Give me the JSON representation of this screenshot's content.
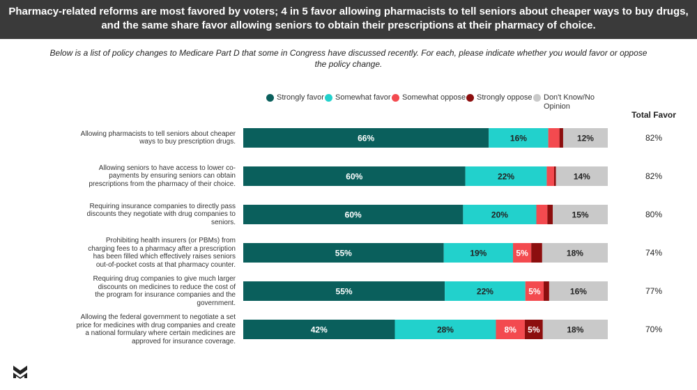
{
  "header": {
    "line1": "Pharmacy-related reforms are most favored by voters; 4 in 5 favor allowing pharmacists to tell seniors about cheaper ways to buy drugs,",
    "line2": "and the same share favor allowing seniors to obtain their prescriptions at their pharmacy of choice."
  },
  "subtitle": {
    "line1": "Below is a list of policy changes to Medicare Part D that some in Congress have discussed recently. For each, please indicate whether you would favor or oppose",
    "line2": "the policy change."
  },
  "total_header": "Total Favor",
  "colors": {
    "strongly_favor": "#0a5f5c",
    "somewhat_favor": "#22d1cc",
    "somewhat_oppose": "#f34a4f",
    "strongly_oppose": "#8c0e0e",
    "dont_know": "#c9c9c9",
    "header_bg": "#3a3a3a"
  },
  "chart_data": {
    "type": "bar",
    "orientation": "horizontal",
    "stacked": true,
    "legend_position": "top",
    "categories": [
      "Allowing pharmacists to tell seniors about cheaper ways to buy prescription drugs.",
      "Allowing seniors to have access to lower co-payments by ensuring seniors can obtain prescriptions from the pharmacy of their choice.",
      "Requiring insurance companies to directly pass discounts they negotiate with drug companies to seniors.",
      "Prohibiting health insurers (or PBMs) from charging fees to a pharmacy after a prescription has been filled which effectively raises seniors out-of-pocket costs at that pharmacy counter.",
      "Requiring drug companies to give much larger discounts on medicines to reduce the cost of the program for insurance companies and the government.",
      "Allowing the federal government to negotiate a set price for medicines with drug companies and create a national formulary where certain medicines are approved for insurance coverage."
    ],
    "category_lines": [
      [
        "Allowing pharmacists to tell seniors about cheaper",
        "ways to buy prescription drugs."
      ],
      [
        "Allowing seniors to have access to lower co-",
        "payments by ensuring seniors can obtain",
        "prescriptions from the pharmacy of their choice."
      ],
      [
        "Requiring insurance companies to directly pass",
        "discounts they negotiate with drug companies to",
        "seniors."
      ],
      [
        "Prohibiting health insurers (or PBMs) from",
        "charging fees to a pharmacy after a prescription",
        "has been filled which effectively raises seniors",
        "out-of-pocket costs at that pharmacy counter."
      ],
      [
        "Requiring drug companies to give much larger",
        "discounts on medicines to reduce the cost of",
        "the program for insurance companies and the",
        "government."
      ],
      [
        "Allowing the federal government to negotiate a set",
        "price for medicines with drug companies and create",
        "a national formulary where certain medicines are",
        "approved for insurance coverage."
      ]
    ],
    "series": [
      {
        "name": "Strongly favor",
        "key": "strongly_favor",
        "label_color": "#ffffff",
        "values": [
          66,
          60,
          60,
          55,
          55,
          42
        ]
      },
      {
        "name": "Somewhat favor",
        "key": "somewhat_favor",
        "label_color": "#222222",
        "values": [
          16,
          22,
          20,
          19,
          22,
          28
        ]
      },
      {
        "name": "Somewhat oppose",
        "key": "somewhat_oppose",
        "label_color": "#ffffff",
        "values": [
          3,
          2,
          3,
          5,
          5,
          8
        ]
      },
      {
        "name": "Strongly oppose",
        "key": "strongly_oppose",
        "label_color": "#ffffff",
        "values": [
          1,
          0.5,
          1.5,
          3,
          1.5,
          5
        ]
      },
      {
        "name": "Don't Know/No Opinion",
        "key": "dont_know",
        "label_color": "#222222",
        "values": [
          12,
          14,
          15,
          18,
          16,
          18
        ]
      }
    ],
    "data_labels": [
      [
        "66%",
        "16%",
        "",
        "",
        "12%"
      ],
      [
        "60%",
        "22%",
        "",
        "",
        "14%"
      ],
      [
        "60%",
        "20%",
        "",
        "",
        "15%"
      ],
      [
        "55%",
        "19%",
        "5%",
        "",
        "18%"
      ],
      [
        "55%",
        "22%",
        "5%",
        "",
        "16%"
      ],
      [
        "42%",
        "28%",
        "8%",
        "5%",
        "18%"
      ]
    ],
    "total_favor": [
      "82%",
      "82%",
      "80%",
      "74%",
      "77%",
      "70%"
    ]
  }
}
